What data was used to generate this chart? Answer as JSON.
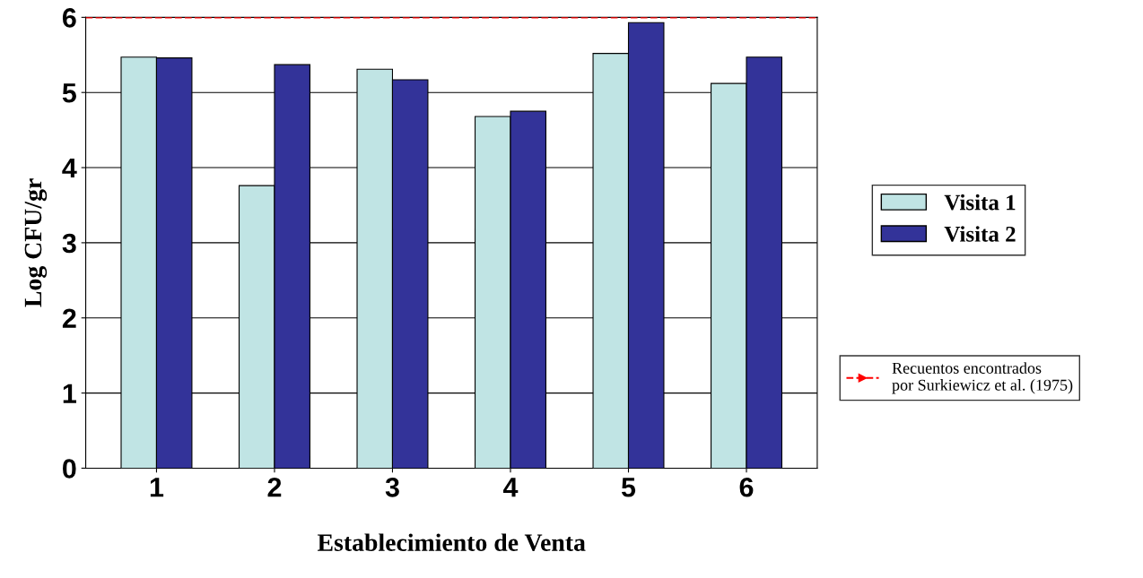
{
  "chart_data": {
    "type": "bar",
    "xlabel": "Establecimiento de Venta",
    "ylabel": "Log CFU/gr",
    "categories": [
      "1",
      "2",
      "3",
      "4",
      "5",
      "6"
    ],
    "series": [
      {
        "name": "Visita 1",
        "color": "#c0e4e4",
        "values": [
          5.47,
          3.76,
          5.31,
          4.68,
          5.52,
          5.12
        ]
      },
      {
        "name": "Visita 2",
        "color": "#333399",
        "values": [
          5.46,
          5.37,
          5.17,
          4.75,
          5.93,
          5.47
        ]
      }
    ],
    "ylim": [
      0,
      6
    ],
    "yticks": [
      0,
      1,
      2,
      3,
      4,
      5,
      6
    ],
    "grid": "y",
    "legend": "right",
    "ref_lines": [
      {
        "axis": "y",
        "value": 6,
        "label": "Recuentos encontrados\npor Surkiewicz et al. (1975)",
        "color": "#ff0000",
        "line_style": "dashed"
      }
    ]
  }
}
